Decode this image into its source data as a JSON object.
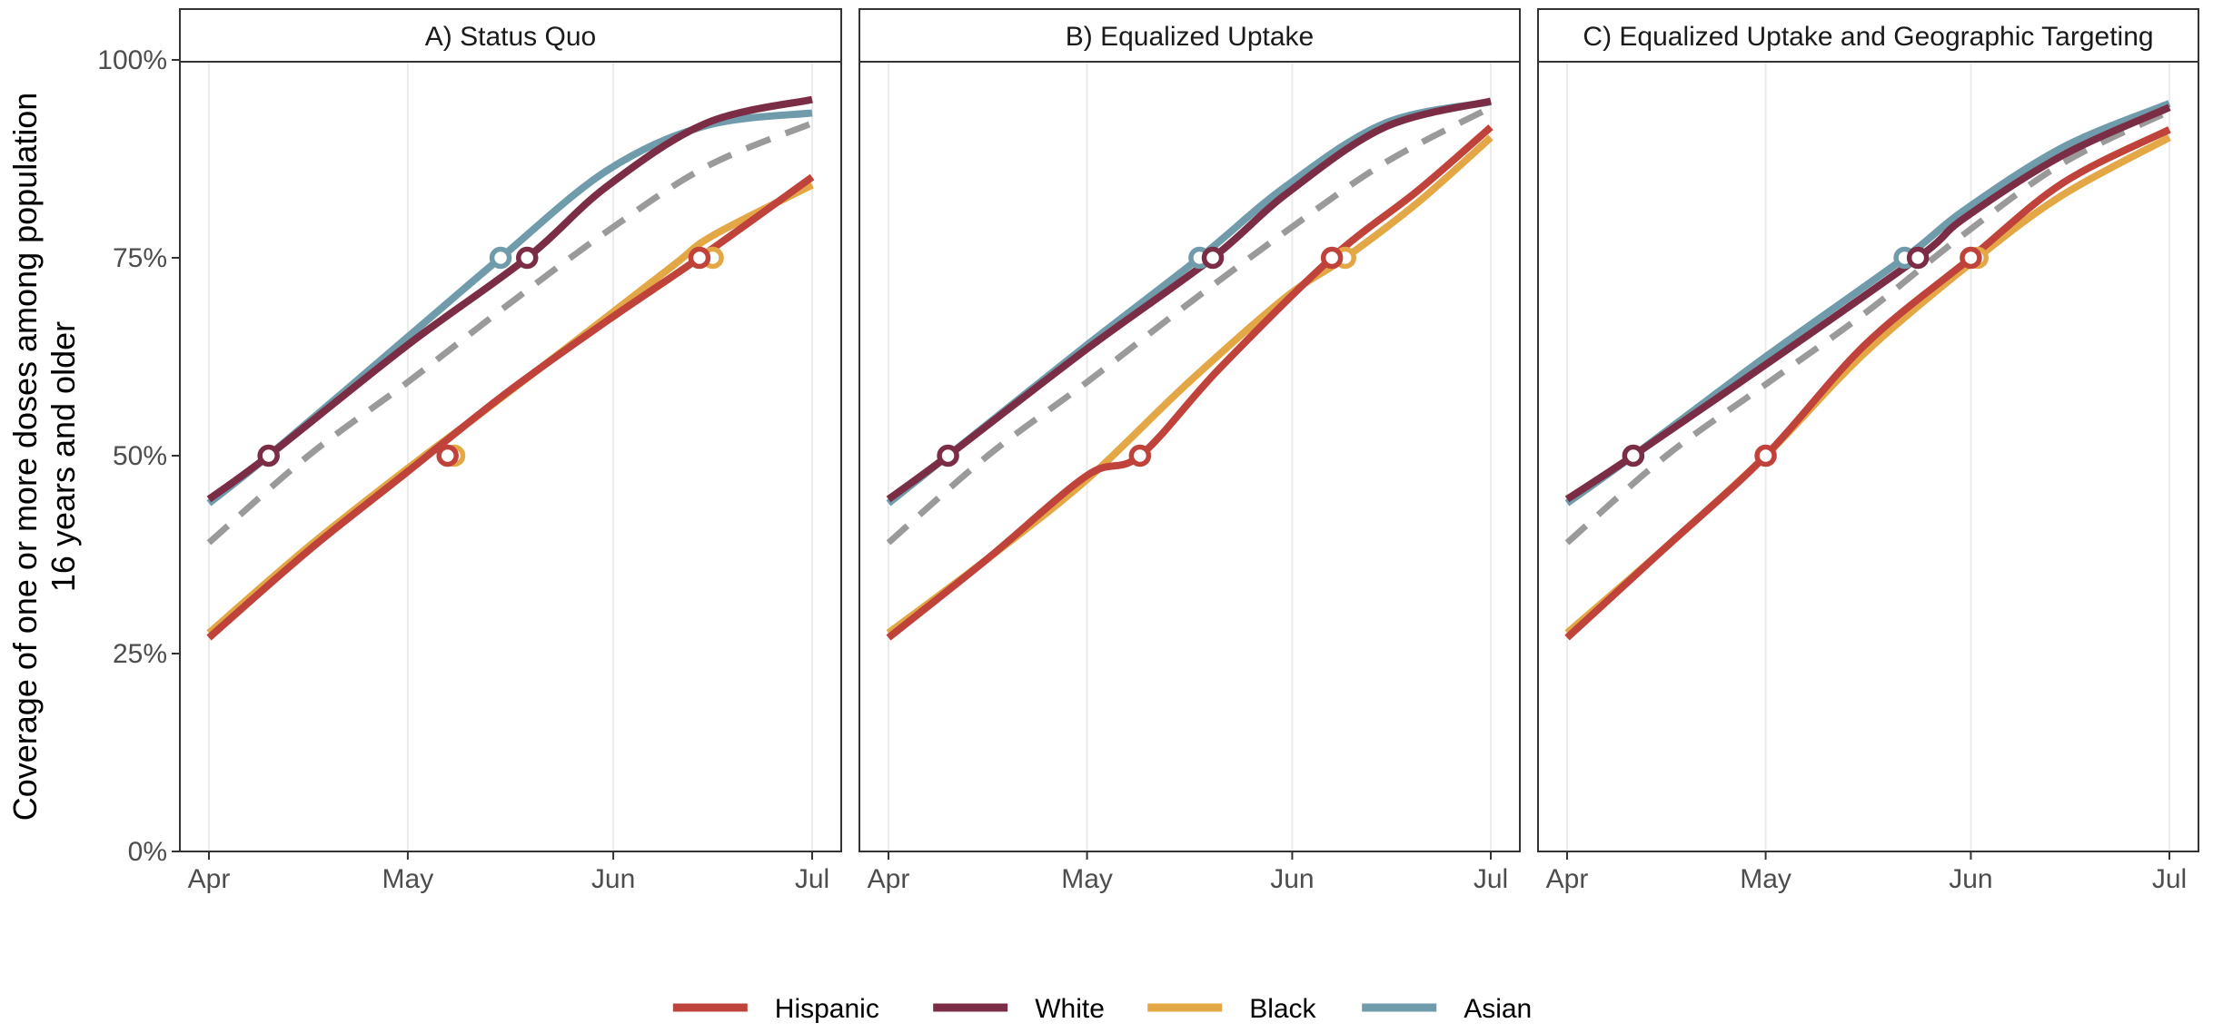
{
  "chart_data": {
    "type": "line",
    "ylabel": [
      "Coverage of one or more doses among population",
      "16 years and older"
    ],
    "ylim": [
      0,
      1
    ],
    "yticks": [
      0,
      0.25,
      0.5,
      0.75,
      1.0
    ],
    "ytick_labels": [
      "0%",
      "25%",
      "50%",
      "75%",
      "100%"
    ],
    "xlim": [
      0,
      91
    ],
    "xticks": [
      0,
      30,
      61,
      91
    ],
    "xtick_labels": [
      "Apr",
      "May",
      "Jun",
      "Jul"
    ],
    "grid": true,
    "legend_position": "bottom",
    "colors": {
      "Hispanic": "#c0433b",
      "White": "#7b2d45",
      "Black": "#e3a845",
      "Asian": "#6f9bab",
      "overall": "#9a9a9a"
    },
    "legend": [
      "Hispanic",
      "White",
      "Black",
      "Asian"
    ],
    "panels": [
      {
        "title": "A) Status Quo",
        "series": [
          {
            "name": "Black",
            "points": [
              [
                0,
                0.276
              ],
              [
                15,
                0.385
              ],
              [
                30,
                0.484
              ],
              [
                40,
                0.547
              ],
              [
                55,
                0.643
              ],
              [
                70,
                0.74
              ],
              [
                76,
                0.778
              ],
              [
                91,
                0.842
              ]
            ],
            "markers": [
              [
                37,
                0.5
              ],
              [
                76,
                0.75
              ]
            ]
          },
          {
            "name": "Hispanic",
            "points": [
              [
                0,
                0.27
              ],
              [
                15,
                0.38
              ],
              [
                30,
                0.48
              ],
              [
                45,
                0.58
              ],
              [
                60,
                0.67
              ],
              [
                74,
                0.75
              ],
              [
                91,
                0.852
              ]
            ],
            "markers": [
              [
                36,
                0.5
              ],
              [
                74,
                0.75
              ]
            ]
          },
          {
            "name": "Overall",
            "dashed": true,
            "points": [
              [
                0,
                0.39
              ],
              [
                15,
                0.5
              ],
              [
                30,
                0.593
              ],
              [
                45,
                0.69
              ],
              [
                60,
                0.783
              ],
              [
                75,
                0.865
              ],
              [
                91,
                0.92
              ]
            ]
          },
          {
            "name": "Asian",
            "points": [
              [
                0,
                0.44
              ],
              [
                9,
                0.5
              ],
              [
                30,
                0.65
              ],
              [
                44,
                0.75
              ],
              [
                60,
                0.86
              ],
              [
                75,
                0.917
              ],
              [
                91,
                0.933
              ]
            ],
            "markers": [
              [
                44,
                0.75
              ]
            ]
          },
          {
            "name": "White",
            "points": [
              [
                0,
                0.445
              ],
              [
                9,
                0.5
              ],
              [
                30,
                0.64
              ],
              [
                48,
                0.75
              ],
              [
                60,
                0.84
              ],
              [
                75,
                0.92
              ],
              [
                91,
                0.95
              ]
            ],
            "markers": [
              [
                9,
                0.5
              ],
              [
                48,
                0.75
              ]
            ]
          }
        ]
      },
      {
        "title": "B) Equalized Uptake",
        "series": [
          {
            "name": "Black",
            "points": [
              [
                0,
                0.276
              ],
              [
                15,
                0.37
              ],
              [
                30,
                0.47
              ],
              [
                45,
                0.59
              ],
              [
                60,
                0.7
              ],
              [
                69,
                0.75
              ],
              [
                80,
                0.82
              ],
              [
                91,
                0.902
              ]
            ],
            "markers": [
              [
                69,
                0.75
              ]
            ]
          },
          {
            "name": "Hispanic",
            "points": [
              [
                0,
                0.27
              ],
              [
                15,
                0.37
              ],
              [
                30,
                0.475
              ],
              [
                38,
                0.5
              ],
              [
                50,
                0.61
              ],
              [
                67,
                0.75
              ],
              [
                80,
                0.835
              ],
              [
                91,
                0.915
              ]
            ],
            "markers": [
              [
                38,
                0.5
              ],
              [
                67,
                0.75
              ]
            ]
          },
          {
            "name": "Overall",
            "dashed": true,
            "points": [
              [
                0,
                0.39
              ],
              [
                15,
                0.5
              ],
              [
                30,
                0.593
              ],
              [
                45,
                0.69
              ],
              [
                60,
                0.783
              ],
              [
                75,
                0.87
              ],
              [
                91,
                0.94
              ]
            ]
          },
          {
            "name": "Asian",
            "points": [
              [
                0,
                0.44
              ],
              [
                9,
                0.5
              ],
              [
                30,
                0.64
              ],
              [
                47,
                0.75
              ],
              [
                60,
                0.84
              ],
              [
                75,
                0.92
              ],
              [
                91,
                0.947
              ]
            ],
            "markers": [
              [
                47,
                0.75
              ]
            ]
          },
          {
            "name": "White",
            "points": [
              [
                0,
                0.445
              ],
              [
                9,
                0.5
              ],
              [
                30,
                0.635
              ],
              [
                49,
                0.75
              ],
              [
                60,
                0.83
              ],
              [
                75,
                0.915
              ],
              [
                91,
                0.948
              ]
            ],
            "markers": [
              [
                9,
                0.5
              ],
              [
                49,
                0.75
              ]
            ]
          }
        ]
      },
      {
        "title": "C) Equalized Uptake and Geographic Targeting",
        "series": [
          {
            "name": "Black",
            "points": [
              [
                0,
                0.276
              ],
              [
                15,
                0.385
              ],
              [
                30,
                0.5
              ],
              [
                45,
                0.63
              ],
              [
                62,
                0.75
              ],
              [
                75,
                0.83
              ],
              [
                91,
                0.902
              ]
            ],
            "markers": [
              [
                62,
                0.75
              ]
            ]
          },
          {
            "name": "Hispanic",
            "points": [
              [
                0,
                0.27
              ],
              [
                15,
                0.385
              ],
              [
                30,
                0.5
              ],
              [
                45,
                0.64
              ],
              [
                61,
                0.75
              ],
              [
                75,
                0.845
              ],
              [
                91,
                0.912
              ]
            ],
            "markers": [
              [
                30,
                0.5
              ],
              [
                61,
                0.75
              ]
            ]
          },
          {
            "name": "Overall",
            "dashed": true,
            "points": [
              [
                0,
                0.39
              ],
              [
                15,
                0.5
              ],
              [
                30,
                0.59
              ],
              [
                45,
                0.68
              ],
              [
                60,
                0.78
              ],
              [
                75,
                0.87
              ],
              [
                91,
                0.935
              ]
            ]
          },
          {
            "name": "Asian",
            "points": [
              [
                0,
                0.44
              ],
              [
                10,
                0.5
              ],
              [
                30,
                0.625
              ],
              [
                51,
                0.75
              ],
              [
                60,
                0.81
              ],
              [
                75,
                0.89
              ],
              [
                91,
                0.945
              ]
            ],
            "markers": [
              [
                51,
                0.75
              ]
            ]
          },
          {
            "name": "White",
            "points": [
              [
                0,
                0.445
              ],
              [
                10,
                0.5
              ],
              [
                30,
                0.615
              ],
              [
                53,
                0.75
              ],
              [
                60,
                0.8
              ],
              [
                75,
                0.88
              ],
              [
                91,
                0.94
              ]
            ],
            "markers": [
              [
                10,
                0.5
              ],
              [
                53,
                0.75
              ]
            ]
          }
        ]
      }
    ]
  }
}
